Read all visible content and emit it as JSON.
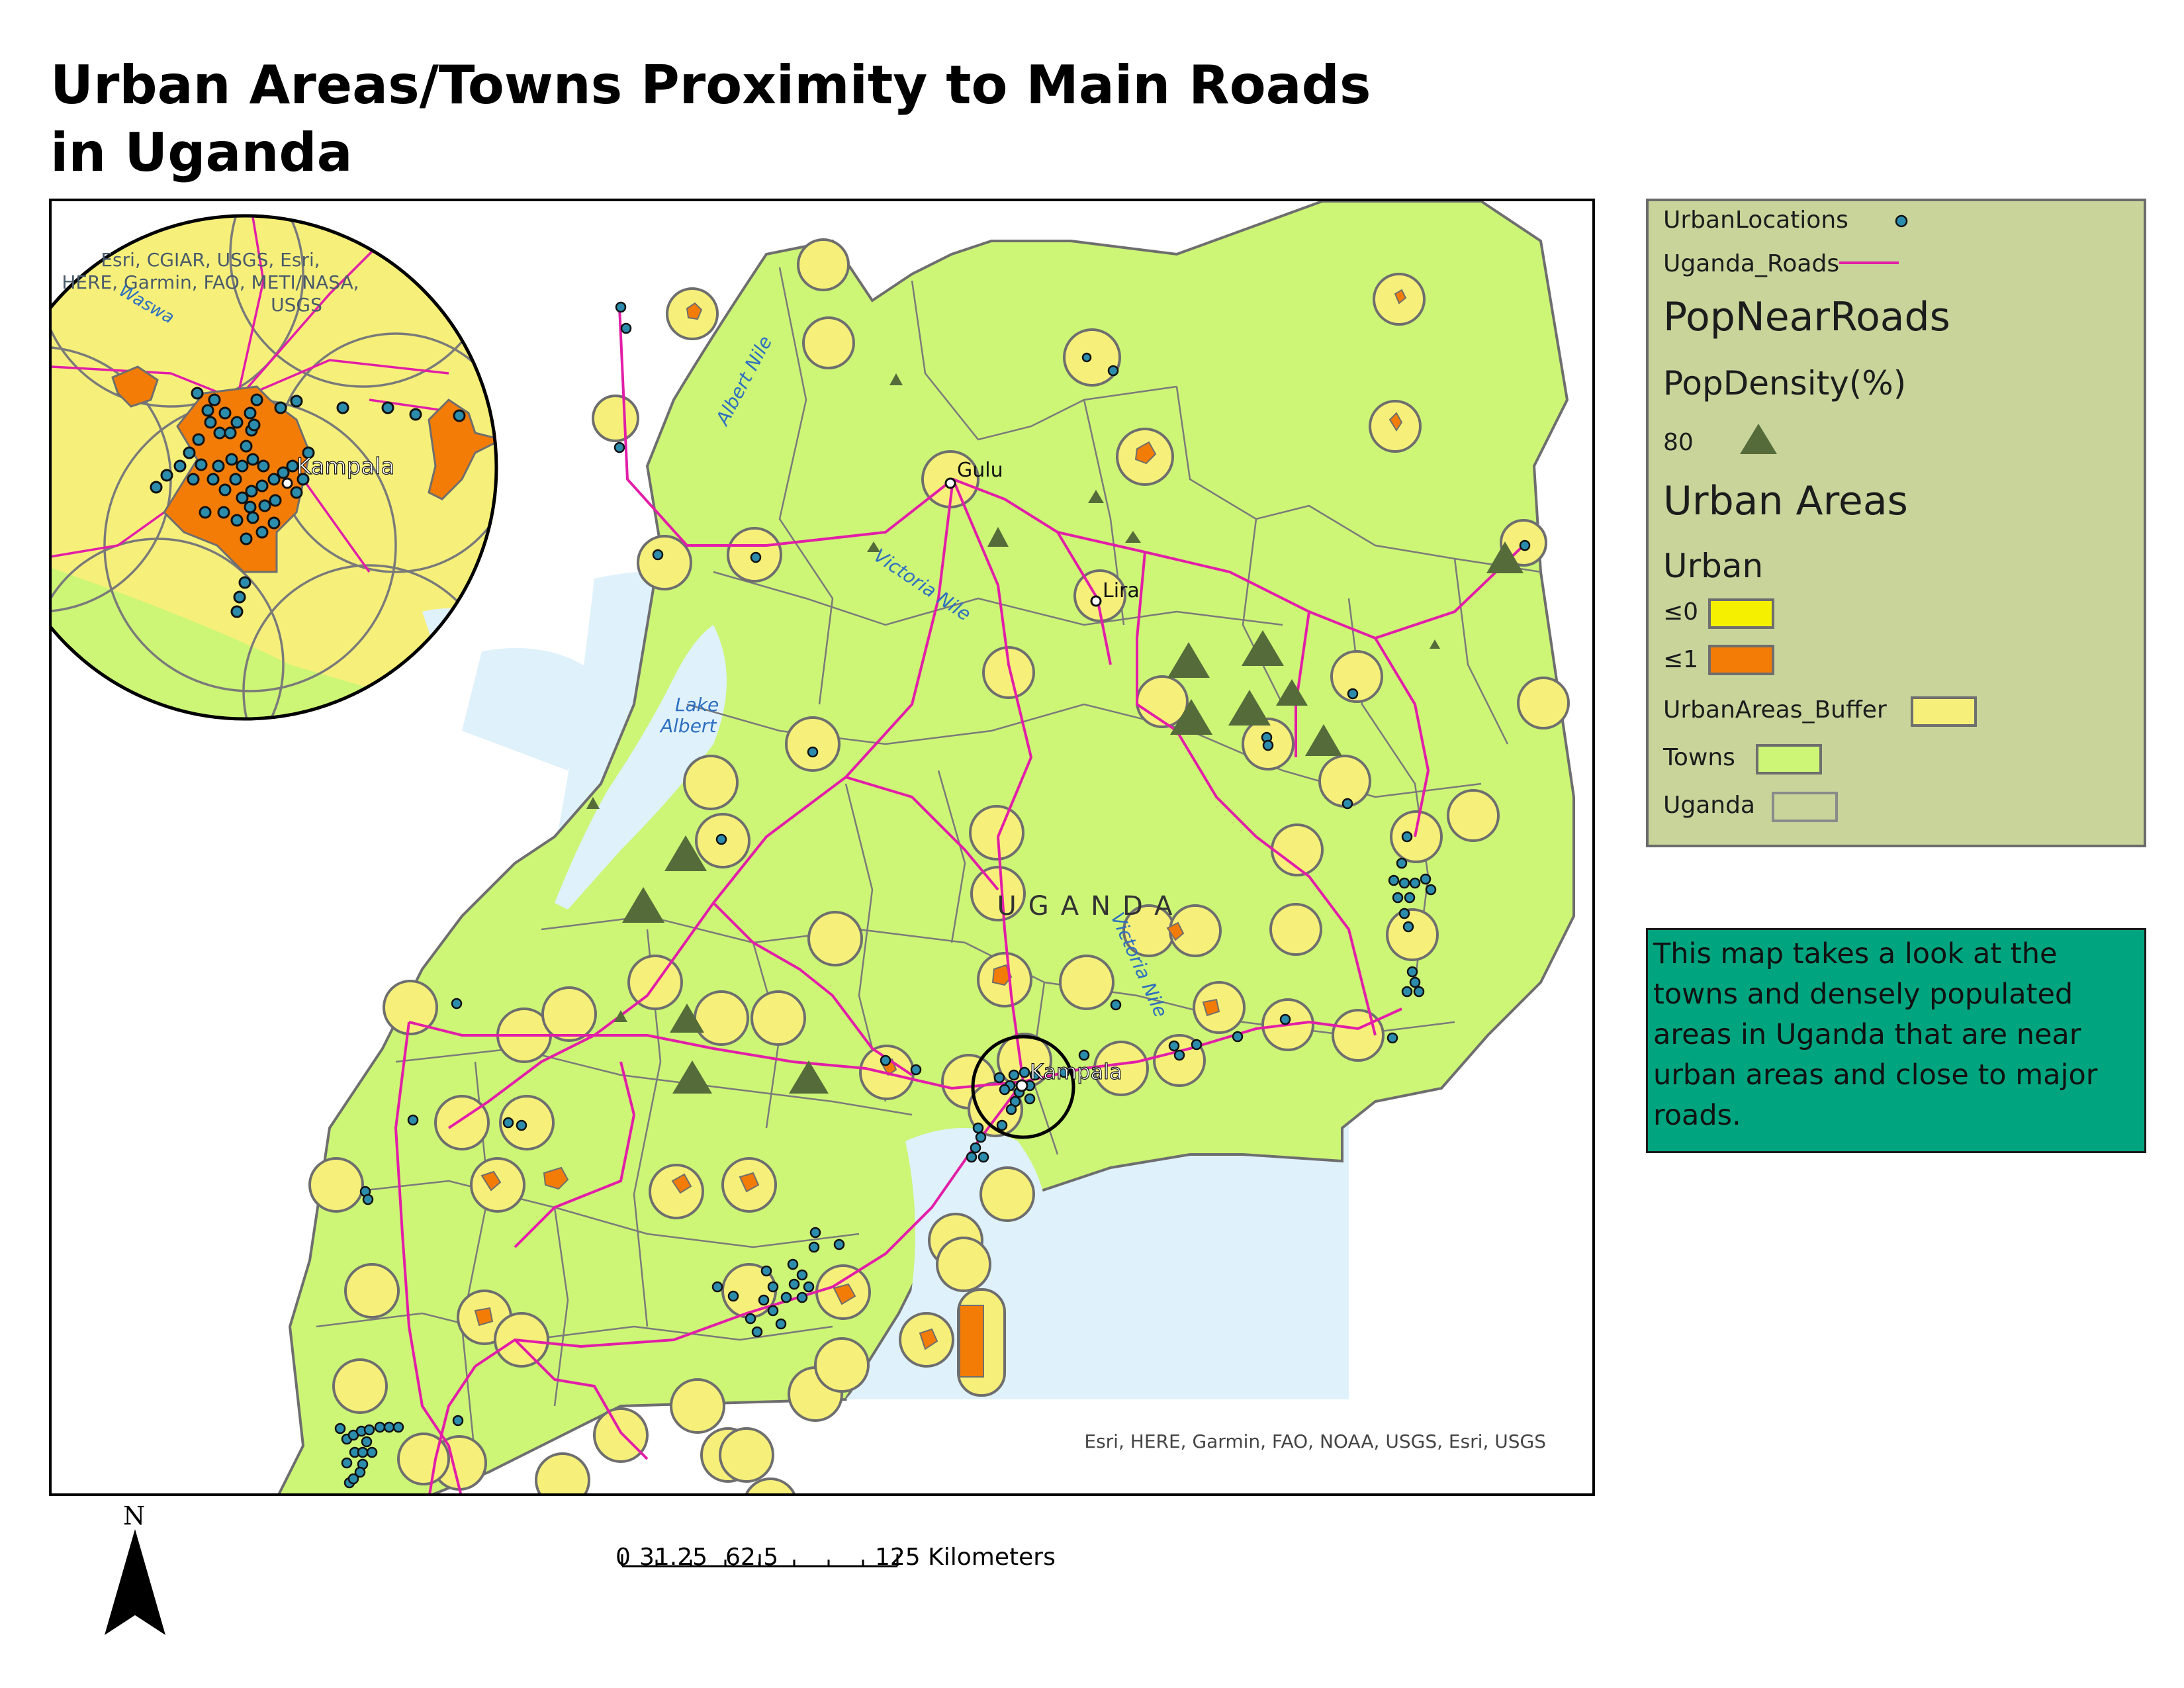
{
  "title": "Urban Areas/Towns Proximity to Main Roads in Uganda",
  "map": {
    "country_label": "UGANDA",
    "cities": [
      "Gulu",
      "Lira",
      "Kampala"
    ],
    "water_labels": [
      "Albert Nile",
      "Victoria Nile",
      "Victoria Nile",
      "Lake Albert"
    ],
    "attribution": "Esri, HERE, Garmin, FAO, NOAA, USGS, Esri, USGS"
  },
  "inset": {
    "city_label": "Kampala",
    "attribution": "Esri, CGIAR, USGS, Esri, HERE, Garmin, FAO, METI/NASA, USGS",
    "water_label": "Waswa"
  },
  "legend": {
    "urban_locations": "UrbanLocations",
    "roads": "Uganda_Roads",
    "pop_near_roads": "PopNearRoads",
    "pop_density": "PopDensity(%)",
    "pop_density_value": "80",
    "urban_areas": "Urban Areas",
    "urban": "Urban",
    "class_0": "≤0",
    "class_1": "≤1",
    "buffer": "UrbanAreas_Buffer",
    "towns": "Towns",
    "uganda": "Uganda"
  },
  "colors": {
    "towns_fill": "#cdf576",
    "buffer_fill": "#f6f07a",
    "urban_fill": "#f27c05",
    "class0_fill": "#f5f000",
    "water": "#dff1fb",
    "roads": "#e21ea8",
    "points": "#2b8cab",
    "triangles": "#556b3a",
    "legend_bg": "#c9d49b",
    "description_bg": "#00a57f"
  },
  "description": "This map takes a look at the towns and densely populated areas in Uganda that are near urban areas and close to major roads.",
  "scalebar": {
    "labels": [
      "0",
      "31.25",
      "62.5",
      "125 Kilometers"
    ]
  },
  "north_label": "N"
}
